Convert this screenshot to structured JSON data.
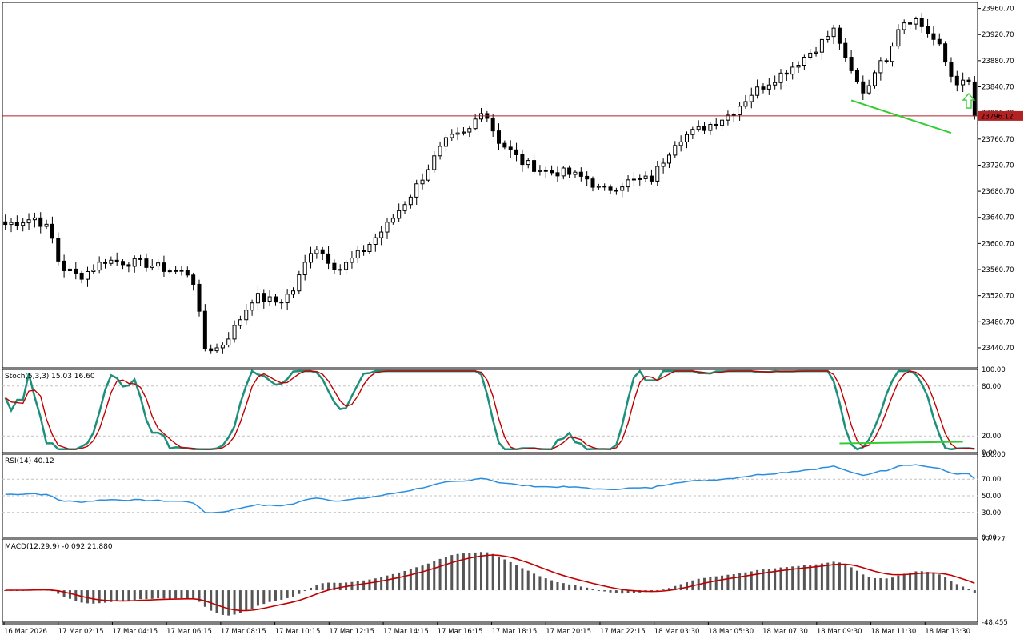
{
  "colors": {
    "background": "#ffffff",
    "frame": "#000000",
    "bull_body": "#ffffff",
    "bear_body": "#000000",
    "price_line": "#b22222",
    "price_tag_bg": "#b22222",
    "trendline": "#33cc33",
    "arrow": "#33cc33",
    "stoch_main": "#1e8f7a",
    "stoch_signal": "#c00000",
    "rsi": "#2a8ee0",
    "macd_hist": "#555555",
    "macd_signal": "#c00000",
    "grid_dash": "#c0c0c0"
  },
  "chart_data": [
    {
      "type": "candlestick",
      "id": "price",
      "current_price": 23796.12,
      "current_price_label": "23796.12",
      "ylim": [
        23410,
        23970
      ],
      "y_ticks": [
        "23960.70",
        "23920.70",
        "23880.70",
        "23840.70",
        "23800.70",
        "23760.70",
        "23720.70",
        "23680.70",
        "23640.70",
        "23600.70",
        "23560.70",
        "23520.70",
        "23480.70",
        "23440.70"
      ],
      "x_ticks": [
        "16 Mar 2026",
        "17 Mar 02:15",
        "17 Mar 04:15",
        "17 Mar 06:15",
        "17 Mar 08:15",
        "17 Mar 10:15",
        "17 Mar 12:15",
        "17 Mar 14:15",
        "17 Mar 16:15",
        "17 Mar 18:15",
        "17 Mar 20:15",
        "17 Mar 22:15",
        "18 Mar 03:30",
        "18 Mar 05:30",
        "18 Mar 07:30",
        "18 Mar 09:30",
        "18 Mar 11:30",
        "18 Mar 13:30"
      ],
      "trendline": {
        "start_bar": 144,
        "start_price": 23820,
        "end_bar": 161,
        "end_price": 23770
      },
      "signal": {
        "type": "up-arrow",
        "bar": 164,
        "price": 23818
      }
    },
    {
      "type": "line",
      "id": "stochastic",
      "label": "Stoch(5,3,3) 15.03 16.60",
      "ylim": [
        0,
        100
      ],
      "levels": [
        20,
        80
      ],
      "y_ticks": [
        "100.00",
        "80.00",
        "20.00",
        "0.00"
      ],
      "trendline": {
        "start_bar": 142,
        "start_value": 11,
        "end_bar": 163,
        "end_value": 13
      }
    },
    {
      "type": "line",
      "id": "rsi",
      "label": "RSI(14) 40.12",
      "ylim": [
        0,
        100
      ],
      "levels": [
        30,
        50,
        70
      ],
      "y_ticks": [
        "100.00",
        "70.00",
        "50.00",
        "30.00",
        "0.00"
      ]
    },
    {
      "type": "bar",
      "id": "macd",
      "label": "MACD(12,29,9) -0.092 21.880",
      "ylim": [
        -48.455,
        77.727
      ],
      "y_ticks": [
        "77.727",
        "-48.455"
      ]
    }
  ]
}
